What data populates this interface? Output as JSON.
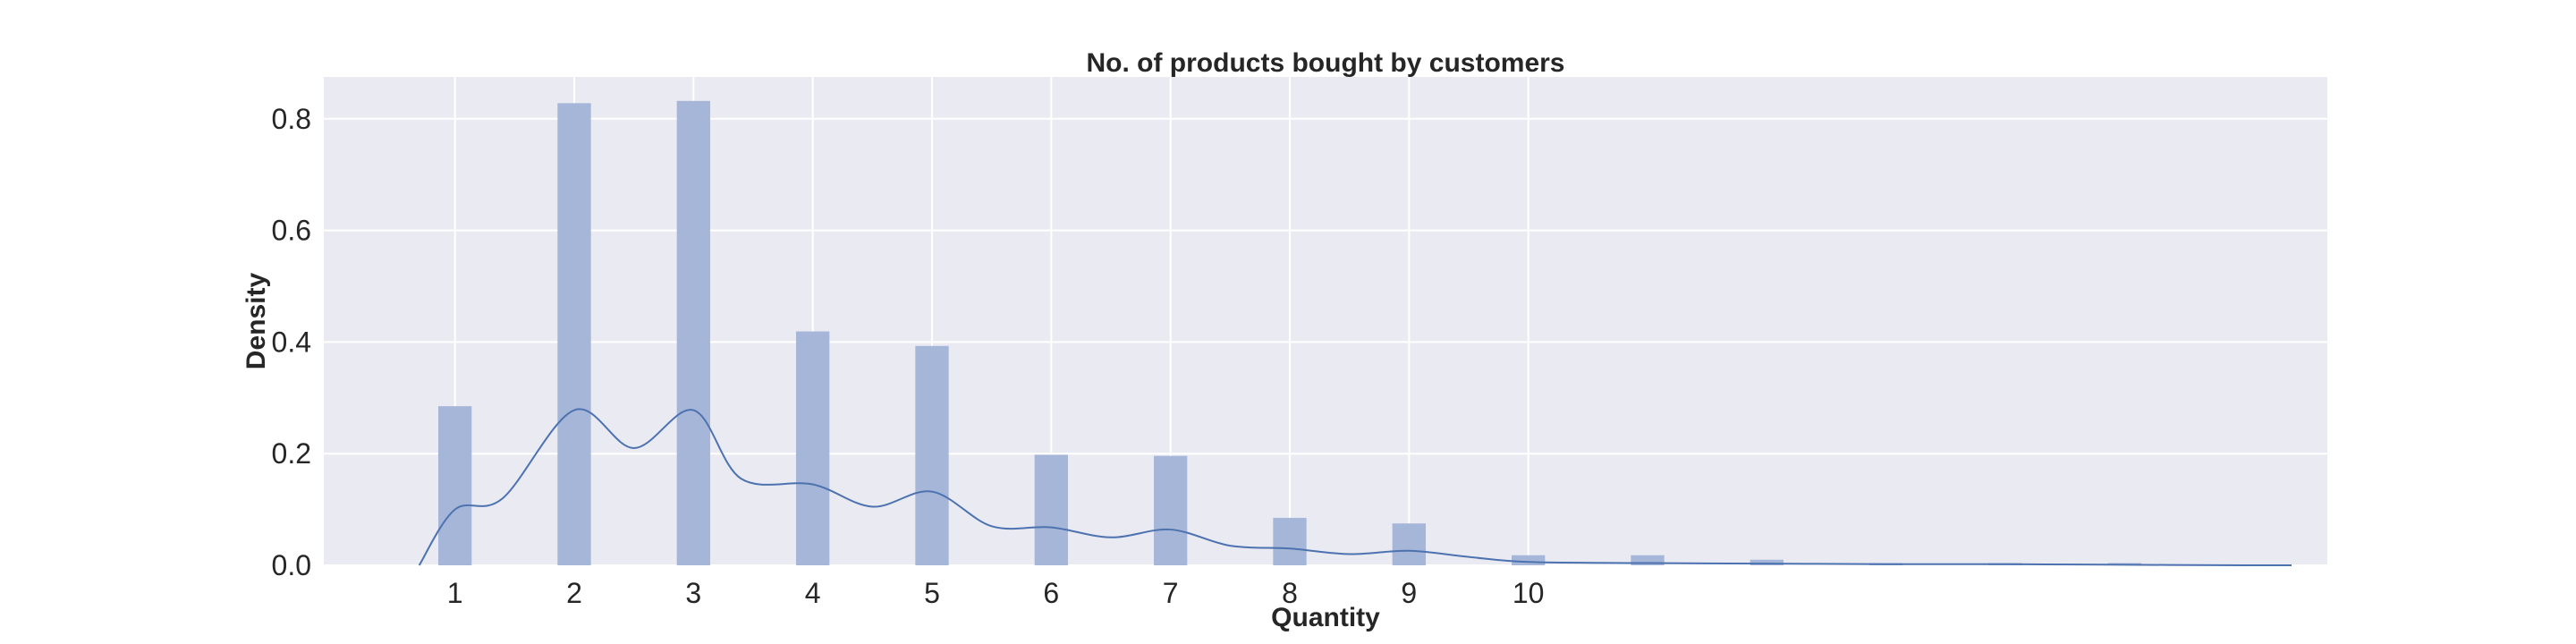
{
  "chart_data": {
    "type": "bar",
    "title": "No. of  products bought by customers",
    "xlabel": "Quantity",
    "ylabel": "Density",
    "xlim": [
      -0.1,
      16.7
    ],
    "ylim": [
      0,
      0.875
    ],
    "x_ticks": [
      1,
      2,
      3,
      4,
      5,
      6,
      7,
      8,
      9,
      10
    ],
    "y_ticks": [
      0.0,
      0.2,
      0.4,
      0.6,
      0.8
    ],
    "y_tick_labels": [
      "0.0",
      "0.2",
      "0.4",
      "0.6",
      "0.8"
    ],
    "grid": true,
    "bar_width": 0.28,
    "histogram": {
      "x": [
        1,
        2,
        3,
        4,
        5,
        6,
        7,
        8,
        9,
        10,
        11,
        12,
        13,
        14,
        15
      ],
      "values": [
        0.285,
        0.828,
        0.832,
        0.419,
        0.393,
        0.198,
        0.196,
        0.085,
        0.075,
        0.018,
        0.018,
        0.01,
        0.004,
        0.004,
        0.004
      ]
    },
    "kde": {
      "x": [
        0.7,
        1.0,
        1.4,
        2.0,
        2.5,
        3.0,
        3.4,
        4.0,
        4.5,
        5.0,
        5.5,
        6.0,
        6.5,
        7.0,
        7.5,
        8.0,
        8.5,
        9.0,
        9.5,
        10.0,
        11.0,
        12.0,
        13.0,
        14.0,
        15.0,
        16.0,
        16.4
      ],
      "values": [
        0.0,
        0.1,
        0.12,
        0.278,
        0.21,
        0.278,
        0.155,
        0.145,
        0.105,
        0.132,
        0.07,
        0.068,
        0.05,
        0.064,
        0.035,
        0.03,
        0.02,
        0.026,
        0.015,
        0.006,
        0.004,
        0.003,
        0.002,
        0.002,
        0.001,
        0.0,
        0.0
      ]
    },
    "colors": {
      "bar": "#a6b6d8",
      "kde": "#4c72b0",
      "plot_background": "#eaeaf2"
    }
  }
}
